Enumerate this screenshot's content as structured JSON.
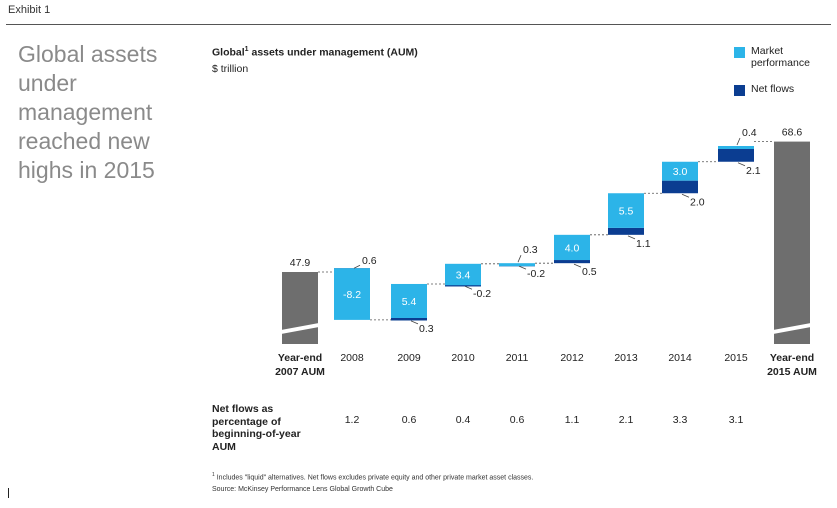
{
  "exhibit": "Exhibit 1",
  "headline": "Global assets under management reached new highs in 2015",
  "chart": {
    "title_main": "Global",
    "title_sup": "1",
    "title_rest": " assets under management (AUM)",
    "unit": "$ trillion"
  },
  "legend": {
    "market": "Market performance",
    "netflows": "Net flows"
  },
  "colors": {
    "market": "#2cb4e8",
    "netflows": "#0b3d91",
    "total": "#6e6e6e",
    "text": "#222222"
  },
  "chart_data": {
    "type": "waterfall",
    "title": "Global¹ assets under management (AUM)",
    "ylabel": "$ trillion",
    "start": {
      "label_line1": "Year-end",
      "label_line2": "2007 AUM",
      "value": 47.9,
      "display": "47.9"
    },
    "end": {
      "label_line1": "Year-end",
      "label_line2": "2015 AUM",
      "value": 68.6,
      "display": "68.6"
    },
    "years": [
      {
        "year": "2008",
        "market": -8.2,
        "market_label": "-8.2",
        "flows": 0.6,
        "flows_label": "0.6"
      },
      {
        "year": "2009",
        "market": 5.4,
        "market_label": "5.4",
        "flows": 0.3,
        "flows_label": "0.3"
      },
      {
        "year": "2010",
        "market": 3.4,
        "market_label": "3.4",
        "flows": -0.2,
        "flows_label": "-0.2"
      },
      {
        "year": "2011",
        "market": 0.3,
        "market_label": "0.3",
        "flows": -0.2,
        "flows_label": "-0.2"
      },
      {
        "year": "2012",
        "market": 4.0,
        "market_label": "4.0",
        "flows": 0.5,
        "flows_label": "0.5"
      },
      {
        "year": "2013",
        "market": 5.5,
        "market_label": "5.5",
        "flows": 1.1,
        "flows_label": "1.1"
      },
      {
        "year": "2014",
        "market": 3.0,
        "market_label": "3.0",
        "flows": 2.0,
        "flows_label": "2.0"
      },
      {
        "year": "2015",
        "market": 0.4,
        "market_label": "0.4",
        "flows": 2.1,
        "flows_label": "2.1"
      }
    ],
    "axis_break": true
  },
  "netflows_pct": {
    "label": "Net flows as percentage of beginning-of-year AUM",
    "values": [
      "1.2",
      "0.6",
      "0.4",
      "0.6",
      "1.1",
      "2.1",
      "3.3",
      "3.1"
    ]
  },
  "footnote": {
    "sup": "1",
    "text": "Includes \"liquid\" alternatives. Net flows excludes private equity and other private market asset classes."
  },
  "source": "Source: McKinsey Performance Lens Global Growth Cube"
}
